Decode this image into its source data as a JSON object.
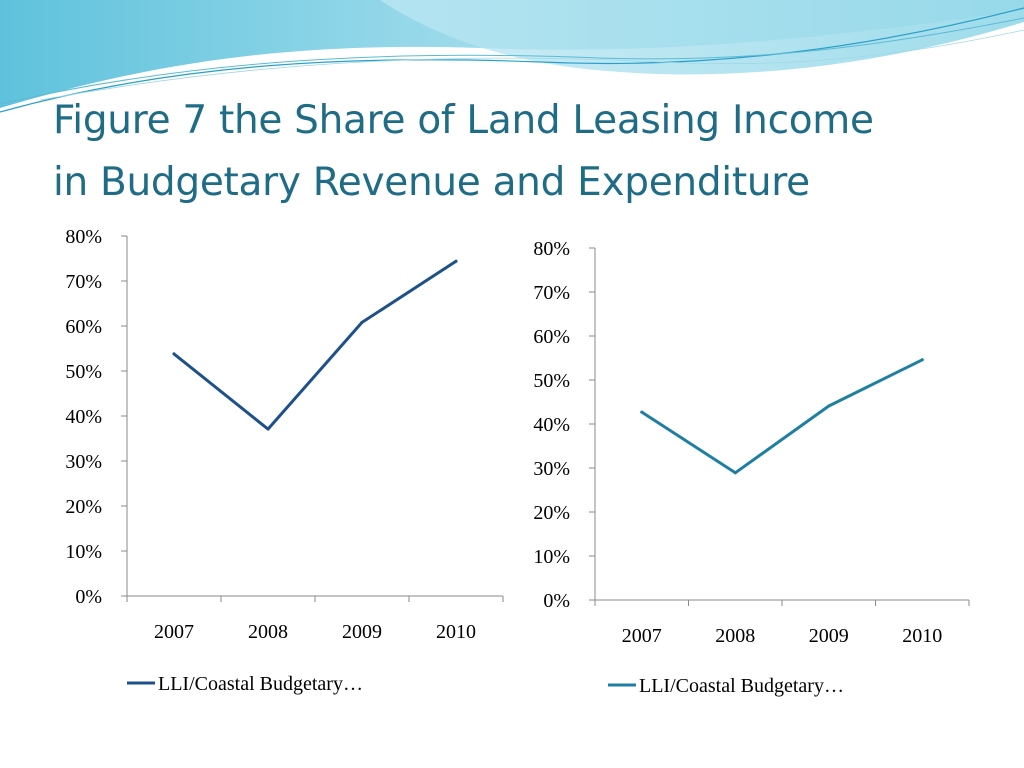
{
  "slide": {
    "title_line1": "Figure 7 the Share of Land Leasing Income",
    "title_line2": "in Budgetary Revenue and Expenditure"
  },
  "colors": {
    "title": "#1f6c86",
    "left_series": "#1e5089",
    "right_series": "#1f7fa3"
  },
  "chart_data": [
    {
      "type": "line",
      "title": "",
      "xlabel": "",
      "ylabel": "",
      "categories": [
        "2007",
        "2008",
        "2009",
        "2010"
      ],
      "y_ticks": [
        "0%",
        "10%",
        "20%",
        "30%",
        "40%",
        "50%",
        "60%",
        "70%",
        "80%"
      ],
      "ylim": [
        0,
        80
      ],
      "grid": false,
      "legend_position": "bottom",
      "series": [
        {
          "name": "LLI/Coastal Budgetary…",
          "values": [
            53.8,
            37.1,
            60.8,
            74.4
          ]
        }
      ]
    },
    {
      "type": "line",
      "title": "",
      "xlabel": "",
      "ylabel": "",
      "categories": [
        "2007",
        "2008",
        "2009",
        "2010"
      ],
      "y_ticks": [
        "0%",
        "10%",
        "20%",
        "30%",
        "40%",
        "50%",
        "60%",
        "70%",
        "80%"
      ],
      "ylim": [
        0,
        80
      ],
      "grid": false,
      "legend_position": "bottom",
      "series": [
        {
          "name": "LLI/Coastal Budgetary…",
          "values": [
            42.7,
            28.9,
            44.1,
            54.6
          ]
        }
      ]
    }
  ]
}
